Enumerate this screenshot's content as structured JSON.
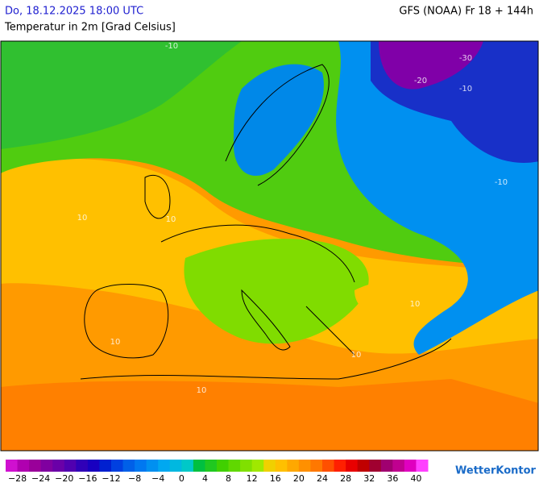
{
  "header": {
    "datetime": "Do, 18.12.2025 18:00 UTC",
    "model": "GFS (NOAA) Fr 18 + 144h",
    "parameter": "Temperatur in 2m [Grad Celsius]"
  },
  "map": {
    "contour_labels": [
      "-10",
      "-20",
      "-30",
      "-10",
      "-10",
      "10",
      "10",
      "10",
      "10",
      "10",
      "10"
    ]
  },
  "legend": {
    "labels": [
      "−28",
      "−24",
      "−20",
      "−16",
      "−12",
      "−8",
      "−4",
      "0",
      "4",
      "8",
      "12",
      "16",
      "20",
      "24",
      "28",
      "32",
      "36",
      "40"
    ],
    "colors": [
      "#d010d0",
      "#b000b0",
      "#9a009a",
      "#8000a0",
      "#6a00a8",
      "#5000b0",
      "#3000b8",
      "#1800c0",
      "#0020d0",
      "#0040e0",
      "#0060e8",
      "#0078f0",
      "#0090f0",
      "#00a8f0",
      "#00b8e0",
      "#00c8c8",
      "#00c040",
      "#20c820",
      "#40d000",
      "#60d800",
      "#80e000",
      "#a0e800",
      "#f0d000",
      "#ffc000",
      "#ffa800",
      "#ff9000",
      "#ff7800",
      "#ff5000",
      "#ff2000",
      "#e80000",
      "#c00000",
      "#a00030",
      "#a00070",
      "#c00090",
      "#e000c0",
      "#ff40ff"
    ]
  },
  "brand": "WetterKontor"
}
